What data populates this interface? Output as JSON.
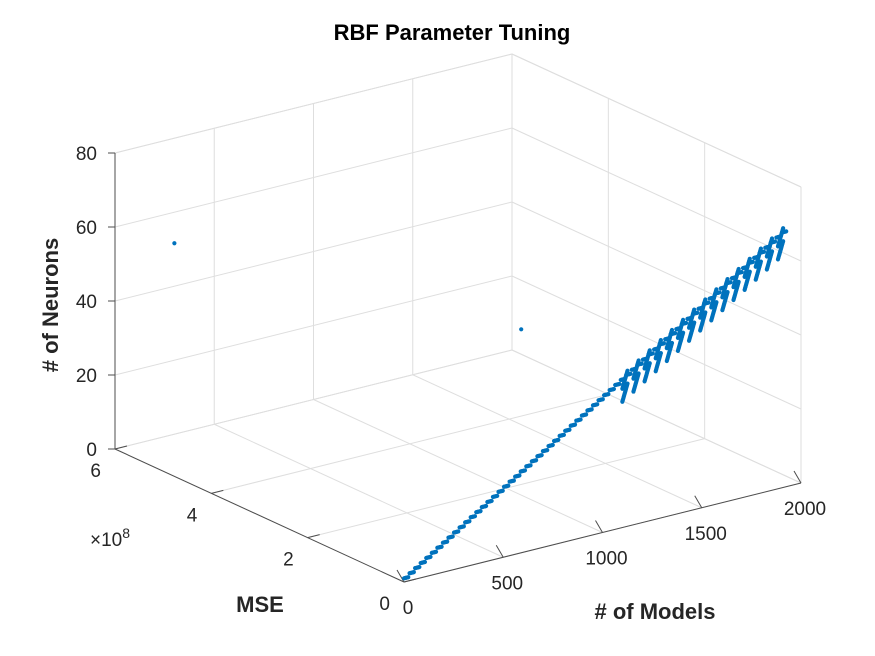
{
  "chart_data": {
    "type": "scatter",
    "projection": "3d",
    "title": "RBF Parameter Tuning",
    "xlabel": "# of Models",
    "ylabel": "MSE",
    "zlabel": "# of Neurons",
    "y_exponent_label": "×10",
    "y_exponent_power": "8",
    "xlim": [
      0,
      2000
    ],
    "ylim": [
      0,
      600000000
    ],
    "zlim": [
      0,
      80
    ],
    "x_ticks": [
      0,
      500,
      1000,
      1500,
      2000
    ],
    "x_tick_labels": [
      "0",
      "500",
      "1000",
      "1500",
      "2000"
    ],
    "y_ticks": [
      0,
      200000000,
      400000000,
      600000000
    ],
    "y_tick_labels": [
      "0",
      "2",
      "4",
      "6"
    ],
    "z_ticks": [
      0,
      20,
      40,
      60,
      80
    ],
    "z_tick_labels": [
      "0",
      "20",
      "40",
      "60",
      "80"
    ],
    "grid": true,
    "marker_color": "#0072bd",
    "series": [
      {
        "marker": "dot",
        "pattern": "models_vs_neurons_low_mse",
        "z_start": 1,
        "z_end": 69,
        "points_per_level": 6,
        "x_step": 4.3,
        "branch_from_z": 41,
        "branch_offsets": [
          -3.5,
          -7
        ],
        "branch_lengths": 14,
        "outliers": [
          {
            "x": 105,
            "y": 520000000,
            "z": 59
          },
          {
            "x": 1100,
            "y": 210000000,
            "z": 41
          }
        ]
      }
    ]
  }
}
